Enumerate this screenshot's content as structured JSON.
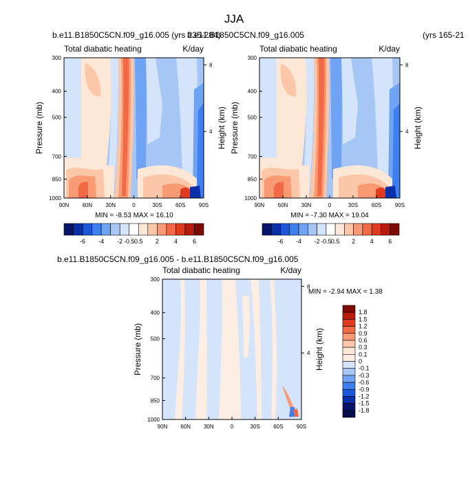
{
  "figure": {
    "title": "JJA",
    "left_header": "b.e11.B1850C5CN.f09_g16.005 (yrs 235-284)",
    "right_header": "b.e11.B1850C5CN.f09_g16.005",
    "right_years": "(yrs 165-21",
    "diff_header": "b.e11.B1850C5CN.f09_g16.005 - b.e11.B1850C5CN.f09_g16.005"
  },
  "chart_data": [
    {
      "type": "heatmap",
      "id": "control",
      "title": "Total diabatic heating",
      "units": "K/day",
      "xlabel": "",
      "ylabel": "Pressure (mb)",
      "ylabel_right": "Height (km)",
      "x_ticks": [
        "90N",
        "60N",
        "30N",
        "0",
        "30S",
        "60S",
        "90S"
      ],
      "y_ticks": [
        300,
        400,
        500,
        700,
        850,
        1000
      ],
      "y_right_ticks": [
        8,
        4
      ],
      "ylim": [
        1000,
        300
      ],
      "stats": "MIN =  -8.53  MAX =  16.10",
      "min": -8.53,
      "max": 16.1
    },
    {
      "type": "heatmap",
      "id": "experiment",
      "title": "Total diabatic heating",
      "units": "K/day",
      "ylabel": "Pressure (mb)",
      "ylabel_right": "Height (km)",
      "x_ticks": [
        "90N",
        "60N",
        "30N",
        "0",
        "30S",
        "60S",
        "90S"
      ],
      "y_ticks": [
        300,
        400,
        500,
        700,
        850,
        1000
      ],
      "y_right_ticks": [
        8,
        4
      ],
      "ylim": [
        1000,
        300
      ],
      "stats": "MIN =  -7.30  MAX =  19.04",
      "min": -7.3,
      "max": 19.04
    },
    {
      "type": "heatmap",
      "id": "difference",
      "title": "Total diabatic heating",
      "units": "K/day",
      "ylabel": "Pressure (mb)",
      "ylabel_right": "Height (km)",
      "x_ticks": [
        "90N",
        "60N",
        "30N",
        "0",
        "30S",
        "60S",
        "90S"
      ],
      "y_ticks": [
        300,
        400,
        500,
        700,
        850,
        1000
      ],
      "y_right_ticks": [
        8,
        4
      ],
      "ylim": [
        1000,
        300
      ],
      "stats": "MIN =  -2.94  MAX =   1.38",
      "min": -2.94,
      "max": 1.38
    }
  ],
  "colorbars": {
    "main": {
      "labels": [
        "-6",
        "-4",
        "-2",
        "-0.5",
        "0.5",
        "2",
        "4",
        "6"
      ],
      "colors": [
        "#08146c",
        "#0b2fa8",
        "#1c57d9",
        "#3d7fee",
        "#6fa3f3",
        "#a6c6f6",
        "#d4e4fb",
        "#ffffff",
        "#fde7d6",
        "#fbc7a8",
        "#f89a73",
        "#f26a45",
        "#e03a1f",
        "#b81a0c",
        "#7e0a04"
      ]
    },
    "diff": {
      "labels": [
        "1.8",
        "1.5",
        "1.2",
        "0.9",
        "0.6",
        "0.3",
        "0.1",
        "0",
        "-0.1",
        "-0.3",
        "-0.6",
        "-0.9",
        "-1.2",
        "-1.5",
        "-1.8"
      ],
      "colors": [
        "#7e0a04",
        "#b81a0c",
        "#e03a1f",
        "#f26a45",
        "#f89a73",
        "#fbc7a8",
        "#fde7d6",
        "#fdeee4",
        "#d4e4fb",
        "#a6c6f6",
        "#6fa3f3",
        "#3d7fee",
        "#1c57d9",
        "#0b2fa8",
        "#08146c",
        "#050d4a"
      ]
    }
  }
}
